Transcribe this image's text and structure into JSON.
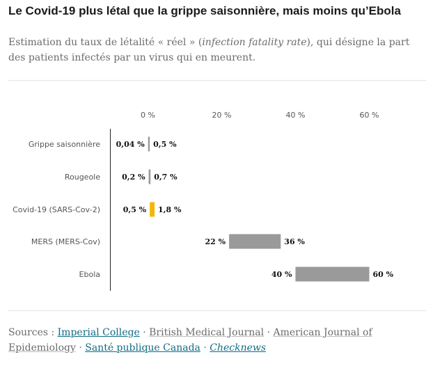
{
  "title": "Le Covid-19 plus létal que la grippe saisonnière, mais moins qu’Ebola",
  "subtitle": {
    "before": "Estimation du taux de létalité « réel » (",
    "italic": "infection fatality rate",
    "after": "), qui désigne la part des patients infectés par un virus qui en meurent."
  },
  "chart_data": {
    "type": "bar",
    "orientation": "horizontal-range",
    "x_ticks": [
      {
        "value": 0,
        "label": "0 %"
      },
      {
        "value": 20,
        "label": "20 %"
      },
      {
        "value": 40,
        "label": "40 %"
      },
      {
        "value": 60,
        "label": "60 %"
      }
    ],
    "xlim": [
      -10,
      65
    ],
    "grid": false,
    "categories": [
      "Grippe saisonnière",
      "Rougeole",
      "Covid-19 (SARS-Cov-2)",
      "MERS (MERS-Cov)",
      "Ebola"
    ],
    "ranges": [
      {
        "low": 0.04,
        "high": 0.5,
        "low_label": "0,04 %",
        "high_label": "0,5 %",
        "color": "#9a9a9a"
      },
      {
        "low": 0.2,
        "high": 0.7,
        "low_label": "0,2 %",
        "high_label": "0,7 %",
        "color": "#9a9a9a"
      },
      {
        "low": 0.5,
        "high": 1.8,
        "low_label": "0,5 %",
        "high_label": "1,8 %",
        "color": "#f2b705"
      },
      {
        "low": 22,
        "high": 36,
        "low_label": "22 %",
        "high_label": "36 %",
        "color": "#9a9a9a"
      },
      {
        "low": 40,
        "high": 60,
        "low_label": "40 %",
        "high_label": "60 %",
        "color": "#9a9a9a"
      }
    ]
  },
  "sources": {
    "prefix": "Sources : ",
    "items": [
      {
        "label": "Imperial College",
        "style": "highlight"
      },
      {
        "label": "British Medical Journal",
        "style": "plain"
      },
      {
        "label": "American Journal of Epidemiology",
        "style": "plain"
      },
      {
        "label": "Santé publique Canada",
        "style": "highlight"
      },
      {
        "label": "Checknews",
        "style": "highlight-italic"
      }
    ],
    "separator": " · "
  }
}
